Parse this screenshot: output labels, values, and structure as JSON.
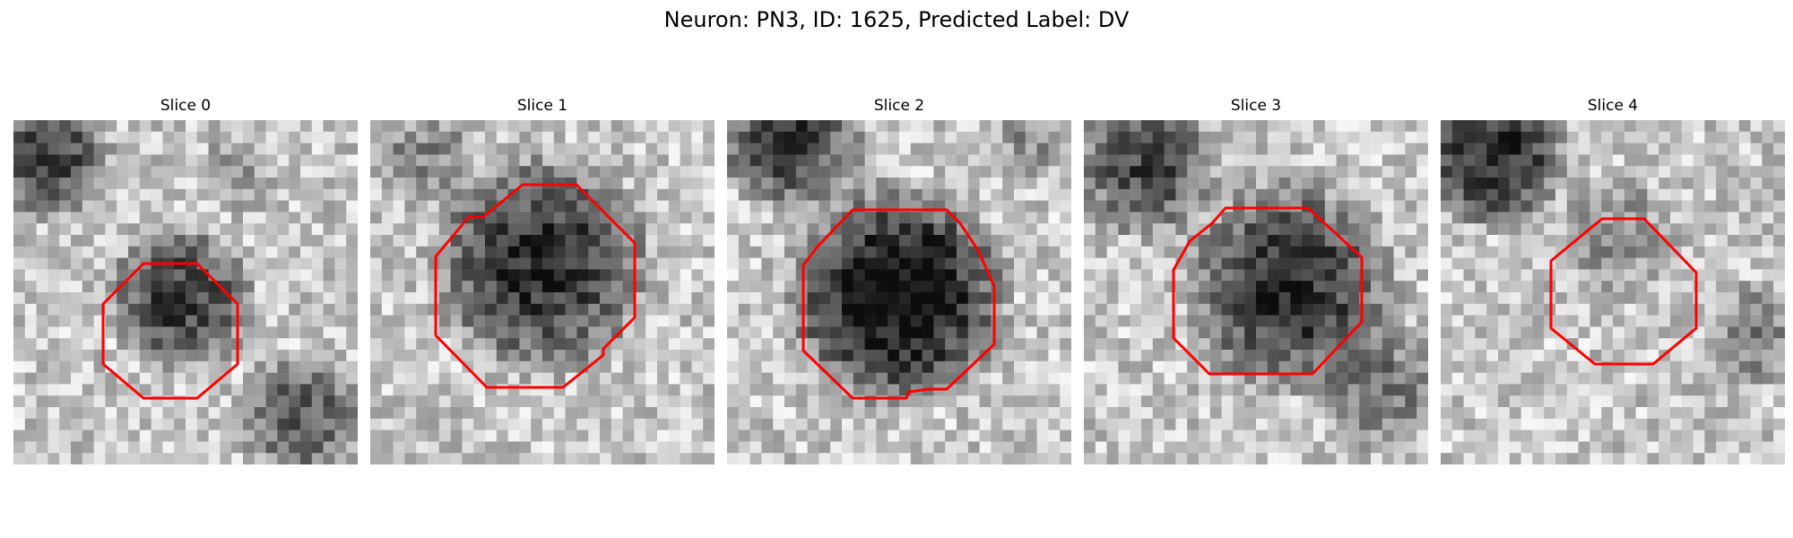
{
  "figure": {
    "title": "Neuron: PN3, ID: 1625, Predicted Label: DV",
    "contour_color": "#ff0000",
    "colormap": "grayscale",
    "panels": [
      {
        "title": "Slice 0",
        "description": "grayscale patch with a dark blob offset upper-center; red octagon contour lower-left"
      },
      {
        "title": "Slice 1",
        "description": "grayscale patch with a large dark round cell; red octagon contour around it"
      },
      {
        "title": "Slice 2",
        "description": "grayscale patch with a very dark round cell; red octagon contour around it"
      },
      {
        "title": "Slice 3",
        "description": "grayscale patch with a dark round cell; red octagon contour around it"
      },
      {
        "title": "Slice 4",
        "description": "grayscale patch with faint mid-gray region; small red octagon contour"
      }
    ]
  }
}
